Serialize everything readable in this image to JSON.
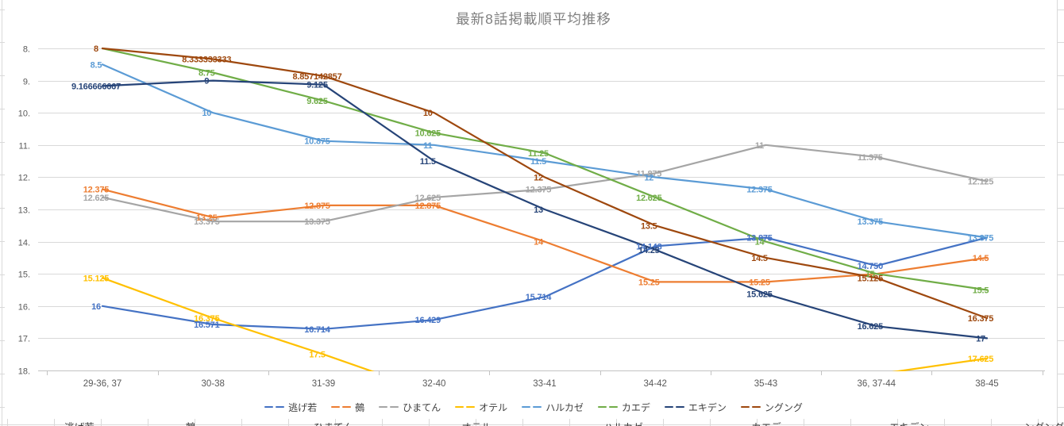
{
  "chart_data": {
    "type": "line",
    "title": "最新8話掲載順平均推移",
    "legend_position": "bottom",
    "grid": true,
    "x_categories": [
      "29-36, 37",
      "30-38",
      "31-39",
      "32-40",
      "33-41",
      "34-42",
      "35-43",
      "36, 37-44",
      "38-45"
    ],
    "y_axis": {
      "tick_labels": [
        "8.",
        "9.",
        "10.",
        "11.",
        "12.",
        "13.",
        "14.",
        "15.",
        "16.",
        "17.",
        "18."
      ],
      "min": 8,
      "max": 18,
      "inverted": true
    },
    "series": [
      {
        "name": "逃げ若",
        "color": "#4472C4",
        "values": [
          16,
          16.571,
          16.714,
          16.429,
          15.714,
          14.143,
          13.875,
          14.75,
          13.875
        ],
        "labels": [
          "16",
          "16.571",
          "16.714",
          "16.429",
          "15.714",
          "14.143",
          "13.875",
          "14.750",
          null
        ]
      },
      {
        "name": "鵺",
        "color": "#ED7D31",
        "values": [
          12.375,
          13.25,
          12.875,
          12.875,
          14,
          15.25,
          15.25,
          15,
          14.5
        ],
        "labels": [
          "12.375",
          "13.25",
          "12.875",
          "12.875",
          "14",
          "15.25",
          "15.25",
          null,
          "14.5"
        ]
      },
      {
        "name": "ひまてん",
        "color": "#A5A5A5",
        "values": [
          12.625,
          13.375,
          13.375,
          12.625,
          12.375,
          11.875,
          11,
          11.375,
          12.125
        ],
        "labels": [
          "12.625",
          "13.375",
          "13.375",
          "12.625",
          "12.375",
          "11.875",
          "11",
          "11.375",
          "12.125"
        ]
      },
      {
        "name": "オテル",
        "color": "#FFC000",
        "values": [
          15.125,
          16.375,
          17.5,
          null,
          null,
          null,
          null,
          null,
          17.625
        ],
        "labels": [
          "15.125",
          "16.375",
          "17.5",
          null,
          null,
          null,
          null,
          null,
          "17.625"
        ],
        "offscreen_points": {
          "3": 18.7,
          "7": 18.12
        }
      },
      {
        "name": "ハルカゼ",
        "color": "#5B9BD5",
        "values": [
          8.5,
          10,
          10.875,
          11,
          11.5,
          12,
          12.375,
          13.375,
          13.875
        ],
        "labels": [
          "8.5",
          "10",
          "10.875",
          "11",
          "11.5",
          "12",
          "12.375",
          "13.375",
          "13.875"
        ]
      },
      {
        "name": "カエデ",
        "color": "#70AD47",
        "values": [
          8,
          8.75,
          9.625,
          10.625,
          11.25,
          12.625,
          14,
          15,
          15.5
        ],
        "labels": [
          null,
          "8.75",
          "9.625",
          "10.625",
          "11.25",
          "12.625",
          "14",
          "15",
          "15.5"
        ]
      },
      {
        "name": "エキデン",
        "color": "#264478",
        "values": [
          9.166666667,
          9,
          9.125,
          11.5,
          13,
          14.25,
          15.625,
          16.625,
          17
        ],
        "labels": [
          "9.166666667",
          "9",
          "9.125",
          "11.5",
          "13",
          "14.25",
          "15.625",
          "16.625",
          "17"
        ]
      },
      {
        "name": "ングング",
        "color": "#9E480E",
        "values": [
          8,
          8.333333333,
          8.857142857,
          10,
          12,
          13.5,
          14.5,
          15.125,
          16.375
        ],
        "labels": [
          "8",
          "8.333333333",
          "8.857142857",
          "10",
          "12",
          "13.5",
          "14.5",
          "15.125",
          "16.375"
        ]
      }
    ]
  },
  "bottom_row_labels": [
    "逃げ若",
    "鵺",
    "ひまてん",
    "オテル",
    "ハルカゼ",
    "カエデ",
    "エキデン",
    "ングング"
  ],
  "colors": {
    "gridline": "#D9D9D9",
    "axis_line": "#C3C3C3",
    "tick_text": "#595959",
    "title_text": "#808080"
  }
}
